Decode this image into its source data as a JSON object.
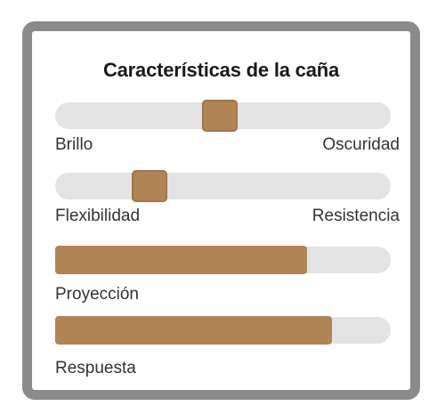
{
  "title": "Características de la caña",
  "colors": {
    "accent": "#b08454",
    "track": "#e3e3e3",
    "frame": "#8a8a8a"
  },
  "scales": [
    {
      "left_label": "Brillo",
      "right_label": "Oscuridad",
      "value": 0.49
    },
    {
      "left_label": "Flexibilidad",
      "right_label": "Resistencia",
      "value": 0.28
    }
  ],
  "bars": [
    {
      "label": "Proyección",
      "value": 0.75
    },
    {
      "label": "Respuesta",
      "value": 0.825
    }
  ]
}
